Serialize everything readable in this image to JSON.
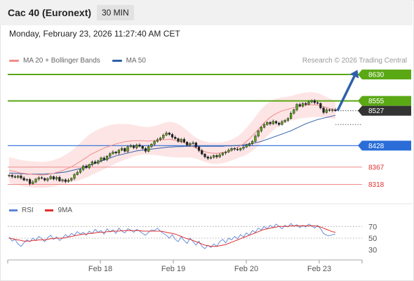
{
  "header": {
    "title": "Cac 40 (Euronext)",
    "interval": "30 MIN",
    "datetime": "Monday, February 23, 2026 11:27:40 AM CET"
  },
  "legend": {
    "ma20_label": "MA 20 + Bollinger Bands",
    "ma50_label": "MA 50",
    "credit": "Research © 2026 Trading Central"
  },
  "rsi_legend": {
    "rsi_label": "RSI",
    "ma_label": "9MA"
  },
  "colors": {
    "ma20": "#f28b8b",
    "ma50": "#2f5fa8",
    "bollinger_fill": "#fde0e0",
    "resistance": "#5aa814",
    "support_blue": "#2a6dd9",
    "support_red": "#f08b8b",
    "current": "#333333",
    "arrow": "#2f5fa8",
    "rsi": "#5b86d6",
    "rsi_ma": "#e03030"
  },
  "chart_data": [
    {
      "type": "candlestick",
      "title": "Cac 40 (Euronext)",
      "interval": "30 MIN",
      "ylim": [
        8283,
        8650
      ],
      "x_labels": [
        "Feb 18",
        "Feb 19",
        "Feb 20",
        "Feb 23"
      ],
      "levels": [
        {
          "value": "8630",
          "kind": "resistance",
          "color": "#5aa814",
          "text_color": "#ffffff"
        },
        {
          "value": "8555",
          "kind": "resistance",
          "color": "#5aa814",
          "text_color": "#ffffff"
        },
        {
          "value": "8527",
          "kind": "current",
          "color": "#333333",
          "text_color": "#ffffff"
        },
        {
          "value": "8428",
          "kind": "support",
          "color": "#2a6dd9",
          "text_color": "#ffffff"
        },
        {
          "value": "8367",
          "kind": "support",
          "color": "#f08b8b",
          "text_color": "#e03030"
        },
        {
          "value": "8318",
          "kind": "support",
          "color": "#f08b8b",
          "text_color": "#e03030"
        }
      ],
      "close": [
        8344,
        8340,
        8338,
        8342,
        8336,
        8330,
        8332,
        8320,
        8325,
        8333,
        8337,
        8335,
        8330,
        8334,
        8340,
        8333,
        8338,
        8328,
        8331,
        8326,
        8330,
        8335,
        8346,
        8352,
        8360,
        8370,
        8365,
        8374,
        8382,
        8378,
        8385,
        8393,
        8388,
        8398,
        8405,
        8410,
        8407,
        8415,
        8420,
        8412,
        8425,
        8428,
        8422,
        8430,
        8426,
        8420,
        8412,
        8425,
        8432,
        8440,
        8445,
        8450,
        8458,
        8464,
        8460,
        8452,
        8448,
        8440,
        8446,
        8438,
        8430,
        8434,
        8436,
        8424,
        8414,
        8404,
        8396,
        8392,
        8395,
        8400,
        8396,
        8402,
        8407,
        8410,
        8415,
        8420,
        8418,
        8416,
        8420,
        8424,
        8429,
        8434,
        8440,
        8455,
        8470,
        8480,
        8488,
        8494,
        8490,
        8497,
        8492,
        8488,
        8496,
        8500,
        8505,
        8520,
        8530,
        8545,
        8540,
        8548,
        8545,
        8552,
        8556,
        8550,
        8548,
        8535,
        8522,
        8530,
        8528,
        8530,
        8527
      ],
      "bollinger_upper": [
        8395,
        8393,
        8391,
        8389,
        8387,
        8386,
        8385,
        8384,
        8383,
        8383,
        8382,
        8382,
        8382,
        8383,
        8385,
        8387,
        8390,
        8393,
        8397,
        8402,
        8407,
        8413,
        8420,
        8428,
        8436,
        8444,
        8452,
        8459,
        8465,
        8470,
        8474,
        8478,
        8481,
        8484,
        8486,
        8488,
        8489,
        8490,
        8490,
        8490,
        8489,
        8488,
        8487,
        8485,
        8483,
        8482,
        8481,
        8481,
        8482,
        8484,
        8486,
        8489,
        8492,
        8494,
        8496,
        8495,
        8493,
        8489,
        8484,
        8478,
        8471,
        8464,
        8457,
        8451,
        8446,
        8442,
        8440,
        8438,
        8437,
        8437,
        8437,
        8437,
        8438,
        8440,
        8442,
        8445,
        8449,
        8454,
        8461,
        8469,
        8478,
        8488,
        8499,
        8510,
        8521,
        8531,
        8540,
        8547,
        8553,
        8558,
        8561,
        8563,
        8565,
        8566,
        8567,
        8569,
        8571,
        8574,
        8576,
        8578,
        8579,
        8580,
        8580,
        8579,
        8577,
        8574,
        8570,
        8566,
        8562,
        8558,
        8554
      ],
      "bollinger_lower": [
        8322,
        8320,
        8318,
        8316,
        8314,
        8312,
        8311,
        8310,
        8309,
        8309,
        8309,
        8309,
        8309,
        8310,
        8311,
        8312,
        8314,
        8316,
        8318,
        8320,
        8322,
        8324,
        8326,
        8328,
        8331,
        8334,
        8337,
        8341,
        8345,
        8349,
        8353,
        8357,
        8361,
        8365,
        8369,
        8373,
        8377,
        8381,
        8385,
        8388,
        8391,
        8394,
        8397,
        8399,
        8401,
        8402,
        8402,
        8402,
        8402,
        8401,
        8400,
        8399,
        8398,
        8397,
        8396,
        8395,
        8394,
        8394,
        8394,
        8394,
        8394,
        8394,
        8393,
        8391,
        8388,
        8385,
        8382,
        8379,
        8377,
        8376,
        8376,
        8377,
        8378,
        8380,
        8383,
        8386,
        8389,
        8392,
        8395,
        8398,
        8402,
        8407,
        8413,
        8420,
        8428,
        8437,
        8446,
        8455,
        8463,
        8471,
        8478,
        8484,
        8489,
        8493,
        8496,
        8499,
        8501,
        8503,
        8505,
        8506,
        8507,
        8508,
        8509,
        8509,
        8509,
        8509,
        8508,
        8507,
        8506,
        8505,
        8504
      ],
      "ma20": [
        8358,
        8356,
        8354,
        8352,
        8350,
        8349,
        8348,
        8347,
        8346,
        8346,
        8345,
        8345,
        8345,
        8346,
        8348,
        8349,
        8352,
        8354,
        8357,
        8361,
        8364,
        8368,
        8373,
        8378,
        8383,
        8389,
        8394,
        8400,
        8405,
        8409,
        8413,
        8417,
        8421,
        8424,
        8427,
        8430,
        8433,
        8435,
        8437,
        8439,
        8440,
        8441,
        8442,
        8442,
        8442,
        8442,
        8441,
        8441,
        8442,
        8442,
        8443,
        8444,
        8445,
        8445,
        8446,
        8445,
        8443,
        8441,
        8439,
        8436,
        8432,
        8429,
        8425,
        8421,
        8417,
        8413,
        8411,
        8408,
        8407,
        8406,
        8406,
        8407,
        8408,
        8410,
        8412,
        8415,
        8419,
        8423,
        8428,
        8433,
        8440,
        8447,
        8456,
        8465,
        8474,
        8484,
        8493,
        8501,
        8508,
        8514,
        8519,
        8523,
        8527,
        8529,
        8531,
        8534,
        8536,
        8538,
        8540,
        8542,
        8543,
        8544,
        8544,
        8544,
        8543,
        8541,
        8539,
        8536,
        8534,
        8531,
        8529
      ],
      "ma50": [
        8350,
        8350,
        8349,
        8349,
        8348,
        8348,
        8347,
        8347,
        8347,
        8347,
        8347,
        8347,
        8347,
        8348,
        8348,
        8349,
        8350,
        8351,
        8352,
        8353,
        8355,
        8357,
        8359,
        8361,
        8363,
        8366,
        8369,
        8372,
        8375,
        8378,
        8381,
        8384,
        8387,
        8390,
        8393,
        8396,
        8399,
        8401,
        8403,
        8405,
        8407,
        8409,
        8411,
        8413,
        8414,
        8415,
        8416,
        8417,
        8418,
        8419,
        8420,
        8421,
        8422,
        8423,
        8424,
        8424,
        8425,
        8425,
        8425,
        8426,
        8426,
        8426,
        8426,
        8426,
        8426,
        8426,
        8426,
        8426,
        8426,
        8426,
        8426,
        8426,
        8426,
        8427,
        8427,
        8427,
        8428,
        8428,
        8429,
        8430,
        8431,
        8432,
        8434,
        8436,
        8438,
        8440,
        8443,
        8446,
        8449,
        8452,
        8455,
        8458,
        8461,
        8464,
        8467,
        8470,
        8474,
        8478,
        8482,
        8486,
        8490,
        8493,
        8496,
        8499,
        8502,
        8504,
        8506,
        8508,
        8510,
        8512,
        8514
      ]
    },
    {
      "type": "line",
      "title": "RSI",
      "ylim": [
        20,
        80
      ],
      "yticks": [
        "70",
        "50",
        "30"
      ],
      "series": [
        {
          "name": "RSI",
          "values": [
            52,
            45,
            48,
            40,
            36,
            42,
            47,
            44,
            50,
            46,
            53,
            49,
            44,
            51,
            55,
            48,
            52,
            46,
            50,
            56,
            52,
            58,
            55,
            61,
            57,
            60,
            55,
            62,
            58,
            65,
            60,
            63,
            57,
            66,
            61,
            64,
            58,
            67,
            62,
            59,
            66,
            64,
            60,
            65,
            62,
            58,
            55,
            60,
            64,
            63,
            67,
            62,
            58,
            55,
            50,
            56,
            48,
            44,
            52,
            46,
            41,
            50,
            44,
            38,
            45,
            36,
            32,
            38,
            34,
            40,
            36,
            44,
            48,
            42,
            50,
            47,
            53,
            49,
            56,
            52,
            59,
            55,
            63,
            60,
            67,
            64,
            70,
            66,
            72,
            68,
            74,
            70,
            66,
            72,
            69,
            75,
            70,
            73,
            68,
            72,
            69,
            74,
            71,
            67,
            72,
            66,
            58,
            55,
            54,
            56,
            57
          ]
        },
        {
          "name": "9MA",
          "values": [
            50,
            49,
            48,
            47,
            46,
            45,
            45,
            45,
            46,
            46,
            47,
            47,
            47,
            48,
            49,
            49,
            50,
            50,
            50,
            51,
            52,
            53,
            54,
            55,
            56,
            57,
            57,
            58,
            58,
            59,
            60,
            60,
            60,
            61,
            61,
            62,
            62,
            62,
            63,
            63,
            63,
            63,
            63,
            63,
            63,
            62,
            62,
            62,
            62,
            62,
            62,
            62,
            61,
            60,
            59,
            58,
            57,
            55,
            53,
            51,
            49,
            48,
            46,
            44,
            42,
            40,
            38,
            37,
            36,
            36,
            36,
            37,
            38,
            39,
            41,
            43,
            45,
            47,
            49,
            51,
            53,
            55,
            57,
            59,
            61,
            63,
            65,
            66,
            67,
            68,
            69,
            70,
            70,
            70,
            70,
            71,
            71,
            71,
            71,
            71,
            71,
            71,
            71,
            71,
            70,
            69,
            67,
            65,
            63,
            61,
            60
          ]
        }
      ]
    }
  ]
}
